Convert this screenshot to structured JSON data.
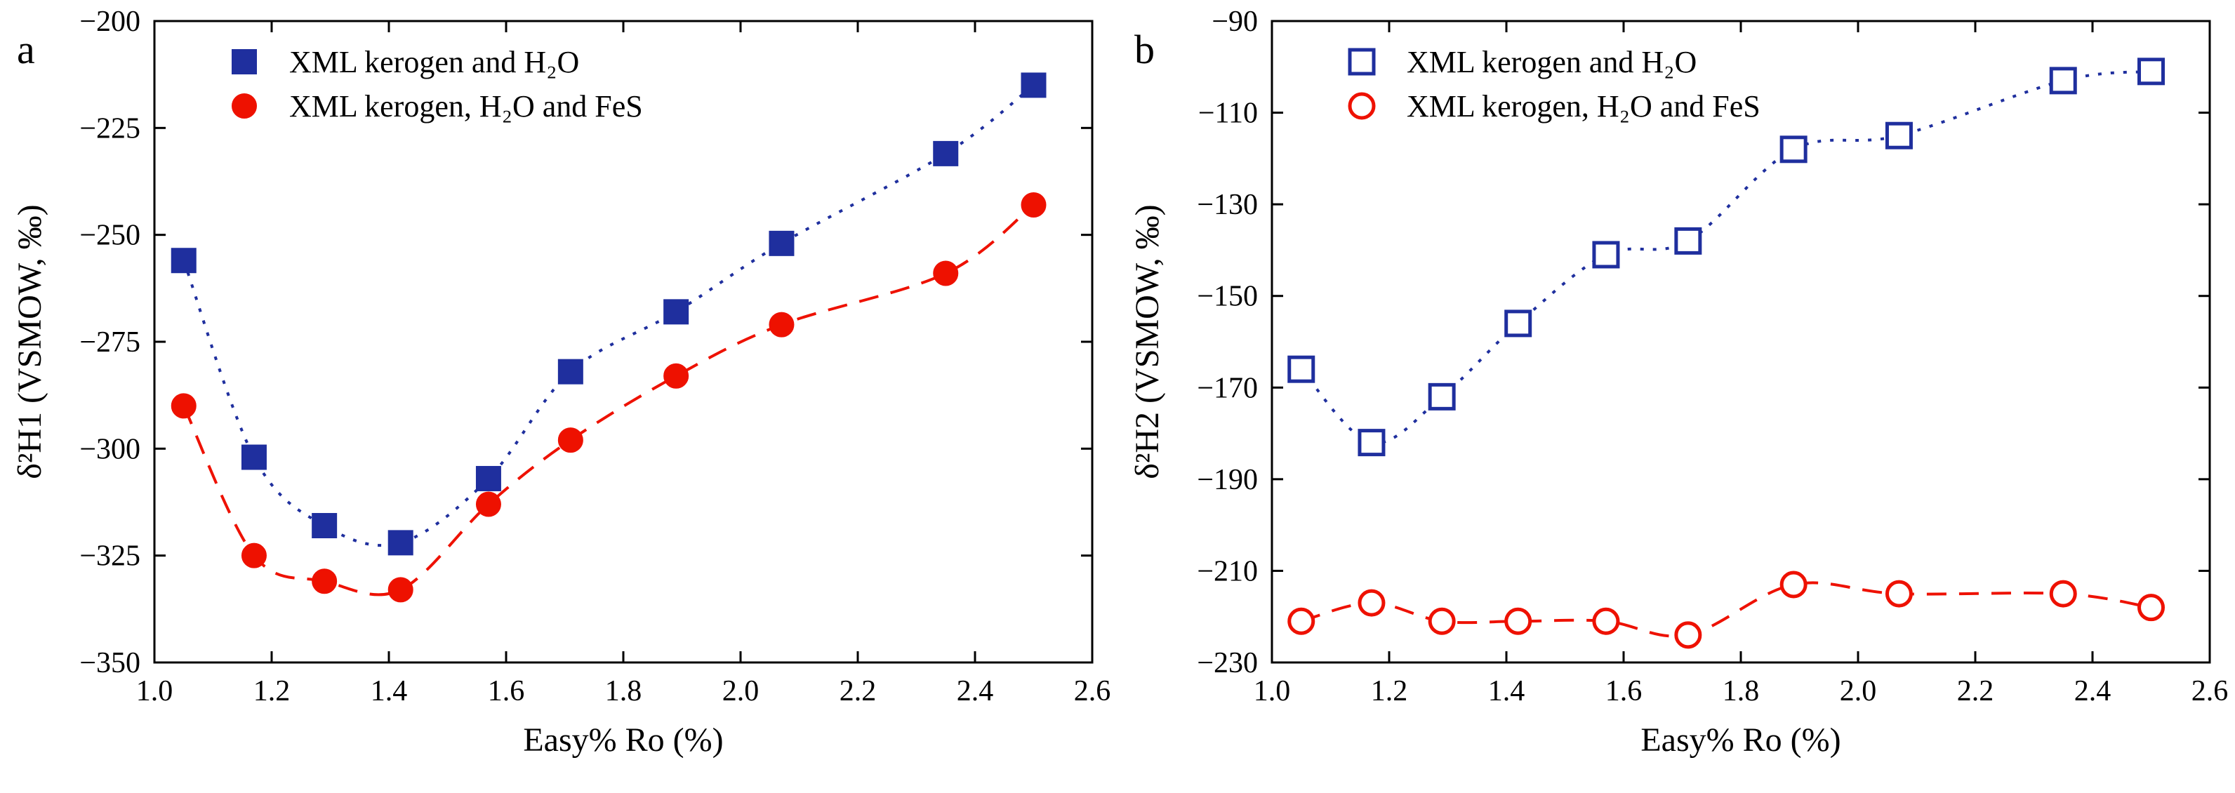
{
  "page": {
    "background": "#ffffff"
  },
  "chart_data": {
    "see": "charts"
  },
  "charts": [
    {
      "panel_label": "a",
      "type": "scatter",
      "xlabel": "Easy% Ro (%)",
      "ylabel": "δ²H1 (VSMOW, ‰)",
      "xlim": [
        1.0,
        2.6
      ],
      "ylim": [
        -350,
        -200
      ],
      "grid": false,
      "legend_position": "top-left-inside",
      "xticks": [
        1.0,
        1.2,
        1.4,
        1.6,
        1.8,
        2.0,
        2.2,
        2.4,
        2.6
      ],
      "xtick_labels": [
        "1.0",
        "1.2",
        "1.4",
        "1.6",
        "1.8",
        "2.0",
        "2.2",
        "2.4",
        "2.6"
      ],
      "yticks": [
        -350,
        -325,
        -300,
        -275,
        -250,
        -225,
        -200
      ],
      "ytick_labels": [
        "−350",
        "−325",
        "−300",
        "−275",
        "−250",
        "−225",
        "−200"
      ],
      "series": [
        {
          "name": "XML kerogen and H₂O",
          "color": "#1f2f9e",
          "marker": "square",
          "marker_fill": "filled",
          "line_style": "dotted",
          "x": [
            1.05,
            1.17,
            1.29,
            1.42,
            1.57,
            1.71,
            1.89,
            2.07,
            2.35,
            2.5
          ],
          "y": [
            -256,
            -302,
            -318,
            -322,
            -307,
            -282,
            -268,
            -252,
            -231,
            -215
          ]
        },
        {
          "name": "XML kerogen, H₂O and FeS",
          "color": "#ee1100",
          "marker": "circle",
          "marker_fill": "filled",
          "line_style": "dashed",
          "x": [
            1.05,
            1.17,
            1.29,
            1.42,
            1.57,
            1.71,
            1.89,
            2.07,
            2.35,
            2.5
          ],
          "y": [
            -290,
            -325,
            -331,
            -333,
            -313,
            -298,
            -283,
            -271,
            -259,
            -243
          ]
        }
      ]
    },
    {
      "panel_label": "b",
      "type": "scatter",
      "xlabel": "Easy% Ro (%)",
      "ylabel": "δ²H2 (VSMOW, ‰)",
      "xlim": [
        1.0,
        2.6
      ],
      "ylim": [
        -230,
        -90
      ],
      "grid": false,
      "legend_position": "top-left-inside",
      "xticks": [
        1.0,
        1.2,
        1.4,
        1.6,
        1.8,
        2.0,
        2.2,
        2.4,
        2.6
      ],
      "xtick_labels": [
        "1.0",
        "1.2",
        "1.4",
        "1.6",
        "1.8",
        "2.0",
        "2.2",
        "2.4",
        "2.6"
      ],
      "yticks": [
        -230,
        -210,
        -190,
        -170,
        -150,
        -130,
        -110,
        -90
      ],
      "ytick_labels": [
        "−230",
        "−210",
        "−190",
        "−170",
        "−150",
        "−130",
        "−110",
        "−90"
      ],
      "series": [
        {
          "name": "XML kerogen and H₂O",
          "color": "#1f2f9e",
          "marker": "square",
          "marker_fill": "open",
          "line_style": "dotted",
          "x": [
            1.05,
            1.17,
            1.29,
            1.42,
            1.57,
            1.71,
            1.89,
            2.07,
            2.35,
            2.5
          ],
          "y": [
            -166,
            -182,
            -172,
            -156,
            -141,
            -138,
            -118,
            -115,
            -103,
            -101
          ]
        },
        {
          "name": "XML kerogen, H₂O and FeS",
          "color": "#ee1100",
          "marker": "circle",
          "marker_fill": "open",
          "line_style": "dashed",
          "x": [
            1.05,
            1.17,
            1.29,
            1.42,
            1.57,
            1.71,
            1.89,
            2.07,
            2.35,
            2.5
          ],
          "y": [
            -221,
            -217,
            -221,
            -221,
            -221,
            -224,
            -213,
            -215,
            -215,
            -218
          ]
        }
      ]
    }
  ]
}
